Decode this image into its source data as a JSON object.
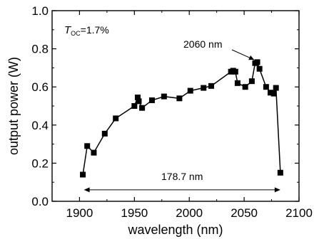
{
  "chart_data": {
    "type": "line",
    "title": "",
    "xlabel": "wavelength (nm)",
    "ylabel": "output power (W)",
    "xlim": [
      1875,
      2100
    ],
    "ylim": [
      0.0,
      1.0
    ],
    "xticks": [
      1900,
      1950,
      2000,
      2050,
      2100
    ],
    "yticks": [
      0.0,
      0.2,
      0.4,
      0.6,
      0.8,
      1.0
    ],
    "ytick_labels": [
      "0.0",
      "0.2",
      "0.4",
      "0.6",
      "0.8",
      "1.0"
    ],
    "grid": false,
    "legend": null,
    "marker": "filled-square",
    "color": "#000000",
    "series": [
      {
        "x": [
          1903,
          1907,
          1913,
          1923,
          1933,
          1950,
          1953,
          1954,
          1957,
          1966,
          1977,
          1991,
          2001,
          2013,
          2020,
          2038,
          2040,
          2042,
          2044,
          2051,
          2057,
          2060,
          2062,
          2064,
          2070,
          2074,
          2077,
          2079,
          2083
        ],
        "y": [
          0.14,
          0.29,
          0.255,
          0.355,
          0.435,
          0.5,
          0.545,
          0.525,
          0.49,
          0.53,
          0.55,
          0.54,
          0.58,
          0.595,
          0.605,
          0.68,
          0.685,
          0.68,
          0.62,
          0.6,
          0.63,
          0.725,
          0.73,
          0.695,
          0.6,
          0.57,
          0.565,
          0.595,
          0.15
        ]
      }
    ],
    "annotations": {
      "toc_prefix": "T",
      "toc_subscript": "OC",
      "toc_value": "=1.7%",
      "peak_label": "2060 nm",
      "peak_x": 2061,
      "peak_y": 0.728,
      "range_label": "178.7 nm",
      "range_x": [
        1904,
        2083
      ],
      "range_y": 0.06
    }
  }
}
